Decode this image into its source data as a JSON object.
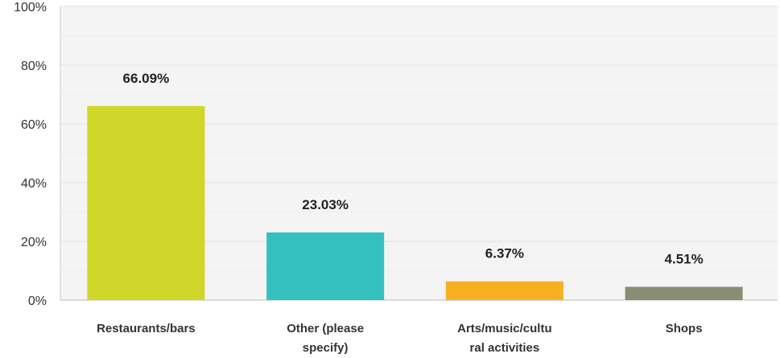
{
  "chart_data": {
    "type": "bar",
    "categories": [
      "Restaurants/bars",
      "Other (please specify)",
      "Arts/music/cultural activities",
      "Shops"
    ],
    "category_label_lines": [
      [
        "Restaurants/bars"
      ],
      [
        "Other (please",
        "specify)"
      ],
      [
        "Arts/music/cultu",
        "ral activities"
      ],
      [
        "Shops"
      ]
    ],
    "values": [
      66.09,
      23.03,
      6.37,
      4.51
    ],
    "data_labels": [
      "66.09%",
      "23.03%",
      "6.37%",
      "4.51%"
    ],
    "colors": [
      "#D1D62A",
      "#35C0C0",
      "#F5B122",
      "#8A8C74"
    ],
    "ylim": [
      0,
      100
    ],
    "yticks": [
      0,
      20,
      40,
      60,
      80,
      100
    ],
    "ytick_labels": [
      "0%",
      "20%",
      "40%",
      "60%",
      "80%",
      "100%"
    ],
    "grid": true,
    "grid_color": "#e8e8e8",
    "plot_background": "#f4f4f4",
    "title": "",
    "xlabel": "",
    "ylabel": ""
  }
}
